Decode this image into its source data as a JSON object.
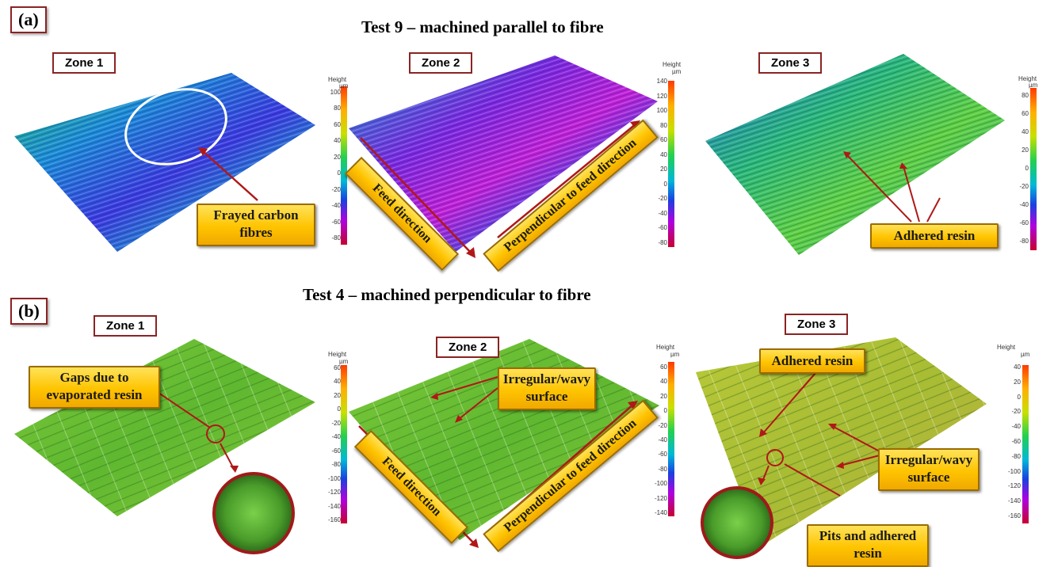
{
  "panel_a": {
    "tag": "(a)",
    "title": "Test 9 – machined parallel to fibre",
    "zones": [
      "Zone 1",
      "Zone 2",
      "Zone 3"
    ],
    "callouts": {
      "frayed": "Frayed carbon fibres",
      "feed": "Feed direction",
      "perp": "Perpendicular to feed direction",
      "resin": "Adhered resin"
    },
    "colorbars": [
      {
        "title": "Height",
        "unit": "µm",
        "ticks": [
          "100",
          "80",
          "60",
          "40",
          "20",
          "0",
          "-20",
          "-40",
          "-60",
          "-80"
        ]
      },
      {
        "title": "Height",
        "unit": "µm",
        "ticks": [
          "140",
          "120",
          "100",
          "80",
          "60",
          "40",
          "20",
          "0",
          "-20",
          "-40",
          "-60",
          "-80"
        ]
      },
      {
        "title": "Height",
        "unit": "µm",
        "ticks": [
          "80",
          "60",
          "40",
          "20",
          "0",
          "-20",
          "-40",
          "-60",
          "-80"
        ]
      }
    ]
  },
  "panel_b": {
    "tag": "(b)",
    "title": "Test 4 – machined perpendicular to fibre",
    "zones": [
      "Zone 1",
      "Zone 2",
      "Zone 3"
    ],
    "callouts": {
      "gaps": "Gaps due to evaporated resin",
      "irregular1": "Irregular/wavy surface",
      "feed": "Feed direction",
      "perp": "Perpendicular to feed direction",
      "adhered": "Adhered resin",
      "irregular2": "Irregular/wavy surface",
      "pits": "Pits and adhered resin"
    },
    "colorbars": [
      {
        "title": "Height",
        "unit": "µm",
        "ticks": [
          "60",
          "40",
          "20",
          "0",
          "-20",
          "-40",
          "-60",
          "-80",
          "-100",
          "-120",
          "-140",
          "-160"
        ]
      },
      {
        "title": "Height",
        "unit": "µm",
        "ticks": [
          "60",
          "40",
          "20",
          "0",
          "-20",
          "-40",
          "-60",
          "-80",
          "-100",
          "-120",
          "-140"
        ]
      },
      {
        "title": "Height",
        "unit": "µm",
        "ticks": [
          "40",
          "20",
          "0",
          "-20",
          "-40",
          "-60",
          "-80",
          "-100",
          "-120",
          "-140",
          "-160"
        ]
      }
    ]
  }
}
